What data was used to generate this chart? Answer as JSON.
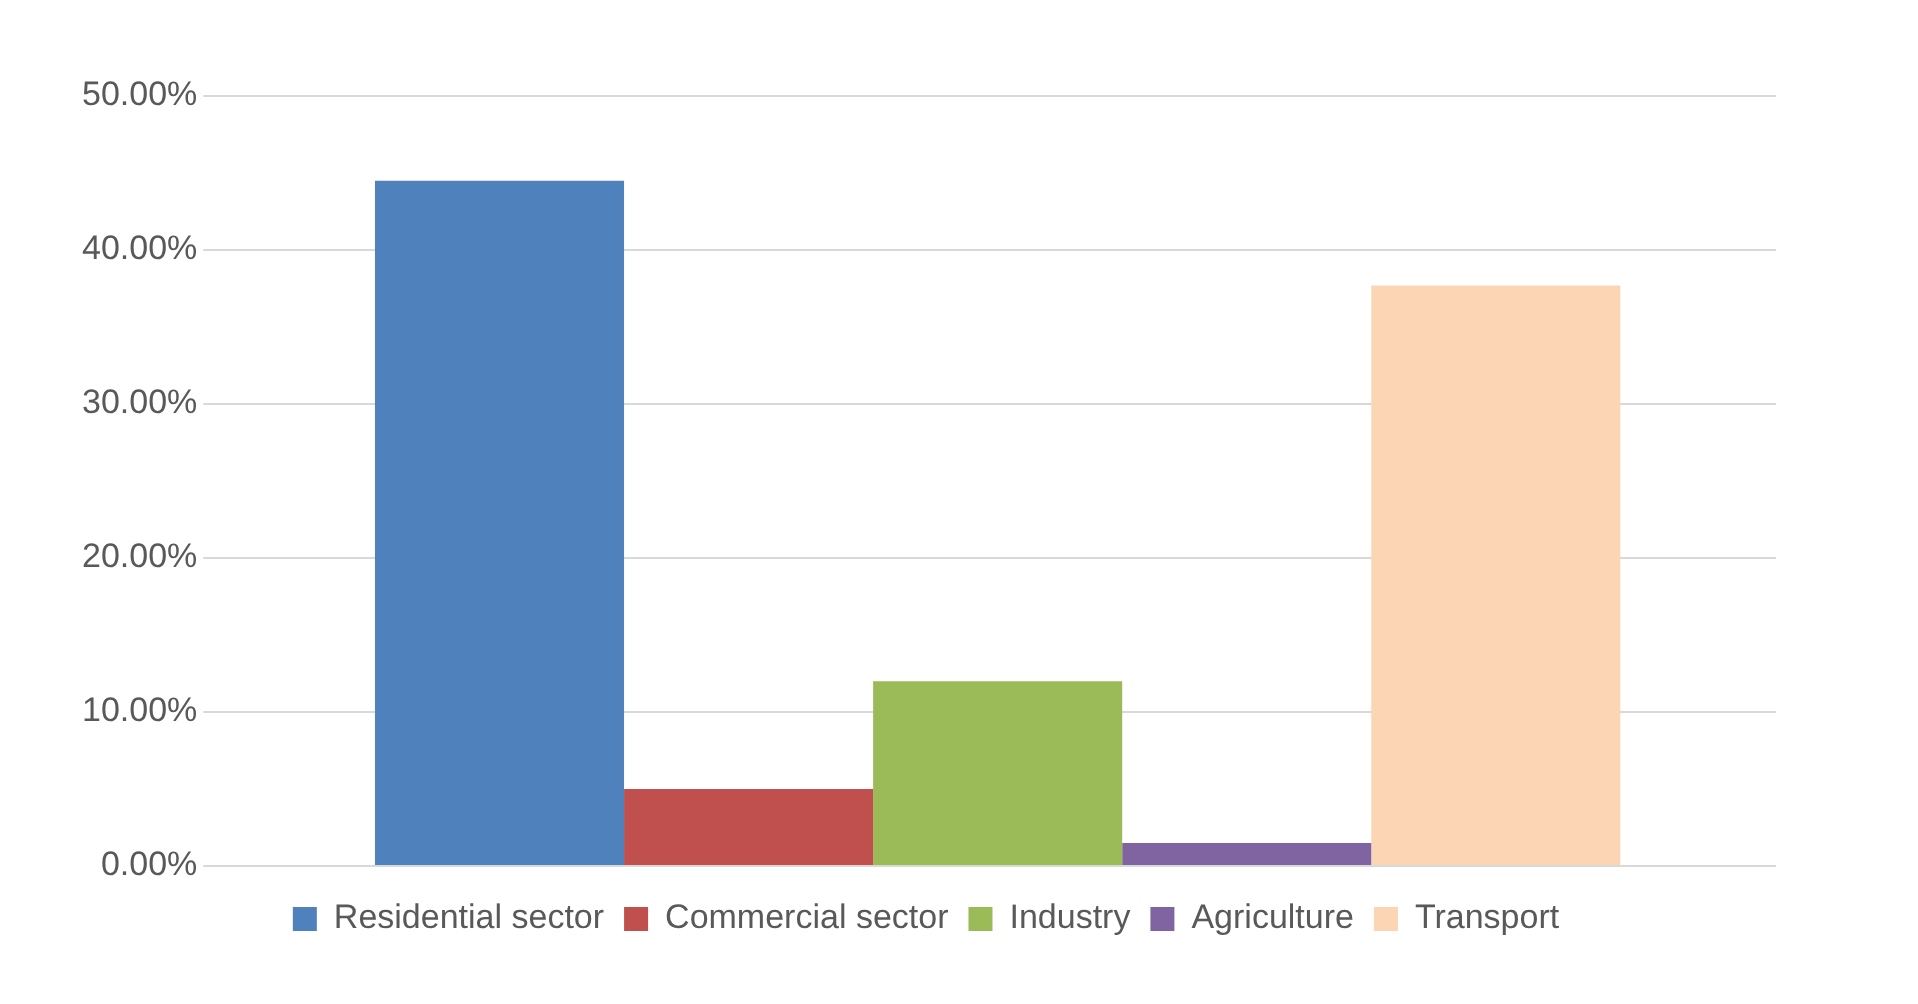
{
  "chart_data": {
    "type": "bar",
    "categories": [
      null
    ],
    "series": [
      {
        "name": "Residential sector",
        "color": "#4f81bd",
        "values": [
          44.5
        ]
      },
      {
        "name": "Commercial sector",
        "color": "#c0504d",
        "values": [
          5
        ]
      },
      {
        "name": "Industry",
        "color": "#9bbb59",
        "values": [
          12
        ]
      },
      {
        "name": "Agriculture",
        "color": "#8064a2",
        "values": [
          1.5
        ]
      },
      {
        "name": "Transport",
        "color": "#fcd5b5",
        "values": [
          37.7
        ]
      }
    ],
    "ylim": [
      0,
      50
    ],
    "yticks": [
      {
        "value": 0,
        "label": "0.00%"
      },
      {
        "value": 10,
        "label": "10.00%"
      },
      {
        "value": 20,
        "label": "20.00%"
      },
      {
        "value": 30,
        "label": "30.00%"
      },
      {
        "value": 40,
        "label": "40.00%"
      },
      {
        "value": 50,
        "label": "50.00%"
      }
    ],
    "grid": "y",
    "legend": "bottom",
    "tick_labels": "y"
  }
}
